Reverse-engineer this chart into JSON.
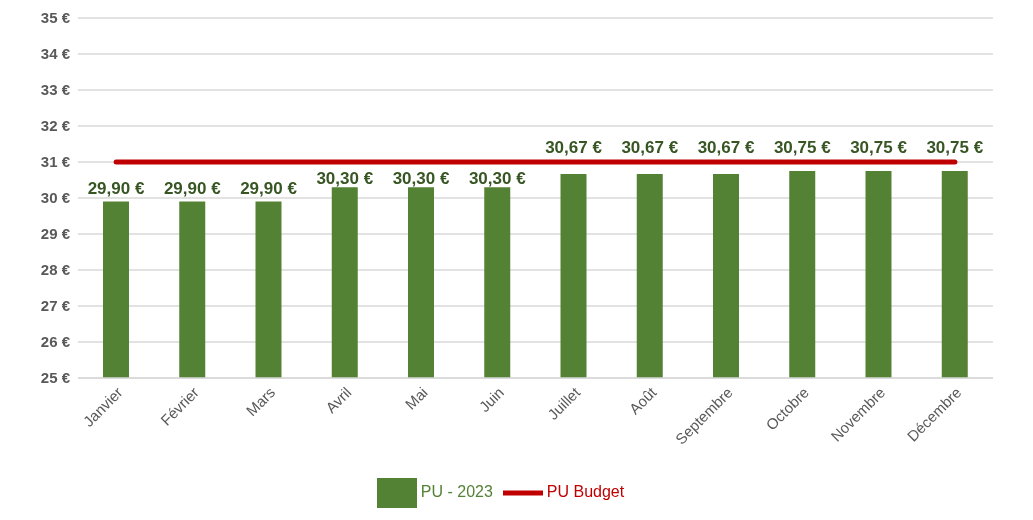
{
  "chart_data": {
    "type": "bar",
    "categories": [
      "Janvier",
      "Février",
      "Mars",
      "Avril",
      "Mai",
      "Juin",
      "Juillet",
      "Août",
      "Septembre",
      "Octobre",
      "Novembre",
      "Décembre"
    ],
    "series": [
      {
        "name": "PU - 2023",
        "color": "#548235",
        "values": [
          29.9,
          29.9,
          29.9,
          30.3,
          30.3,
          30.3,
          30.67,
          30.67,
          30.67,
          30.75,
          30.75,
          30.75
        ],
        "value_labels": [
          "29,90 €",
          "29,90 €",
          "29,90 €",
          "30,30 €",
          "30,30 €",
          "30,30 €",
          "30,67 €",
          "30,67 €",
          "30,67 €",
          "30,75 €",
          "30,75 €",
          "30,75 €"
        ]
      },
      {
        "name": "PU Budget",
        "type": "line",
        "color": "#c00000",
        "values": [
          31,
          31,
          31,
          31,
          31,
          31,
          31,
          31,
          31,
          31,
          31,
          31
        ]
      }
    ],
    "ylim": [
      25,
      35
    ],
    "yticks": [
      {
        "value": 25,
        "label": "25 €"
      },
      {
        "value": 26,
        "label": "26 €"
      },
      {
        "value": 27,
        "label": "27 €"
      },
      {
        "value": 28,
        "label": "28 €"
      },
      {
        "value": 29,
        "label": "29 €"
      },
      {
        "value": 30,
        "label": "30 €"
      },
      {
        "value": 31,
        "label": "31 €"
      },
      {
        "value": 32,
        "label": "32 €"
      },
      {
        "value": 33,
        "label": "33 €"
      },
      {
        "value": 34,
        "label": "34 €"
      },
      {
        "value": 35,
        "label": "35 €"
      }
    ],
    "grid": "y",
    "legend": "bottom",
    "marker": "none",
    "line_style": "solid"
  }
}
